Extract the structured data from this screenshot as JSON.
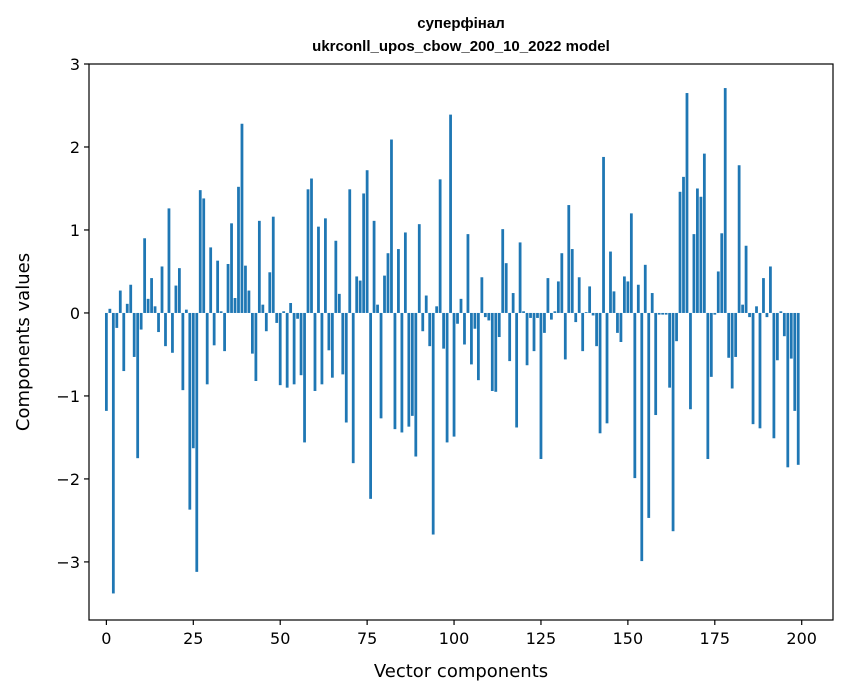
{
  "chart_data": {
    "type": "bar",
    "title_line1": "суперфінал",
    "title_line2": "ukrconll_upos_cbow_200_10_2022 model",
    "xlabel": "Vector components",
    "ylabel": "Components values",
    "xlim": [
      -5,
      209
    ],
    "ylim": [
      -3.7,
      3.0
    ],
    "xticks": [
      0,
      25,
      50,
      75,
      100,
      125,
      150,
      175,
      200
    ],
    "xtick_labels": [
      "0",
      "25",
      "50",
      "75",
      "100",
      "125",
      "150",
      "175",
      "200"
    ],
    "yticks": [
      3,
      2,
      1,
      0,
      -1,
      -2,
      -3
    ],
    "ytick_labels": [
      "3",
      "2",
      "1",
      "0",
      "−1",
      "−2",
      "−3"
    ],
    "bar_color": "#1f77b4",
    "x": [
      0,
      1,
      2,
      3,
      4,
      5,
      6,
      7,
      8,
      9,
      10,
      11,
      12,
      13,
      14,
      15,
      16,
      17,
      18,
      19,
      20,
      21,
      22,
      23,
      24,
      25,
      26,
      27,
      28,
      29,
      30,
      31,
      32,
      33,
      34,
      35,
      36,
      37,
      38,
      39,
      40,
      41,
      42,
      43,
      44,
      45,
      46,
      47,
      48,
      49,
      50,
      51,
      52,
      53,
      54,
      55,
      56,
      57,
      58,
      59,
      60,
      61,
      62,
      63,
      64,
      65,
      66,
      67,
      68,
      69,
      70,
      71,
      72,
      73,
      74,
      75,
      76,
      77,
      78,
      79,
      80,
      81,
      82,
      83,
      84,
      85,
      86,
      87,
      88,
      89,
      90,
      91,
      92,
      93,
      94,
      95,
      96,
      97,
      98,
      99,
      100,
      101,
      102,
      103,
      104,
      105,
      106,
      107,
      108,
      109,
      110,
      111,
      112,
      113,
      114,
      115,
      116,
      117,
      118,
      119,
      120,
      121,
      122,
      123,
      124,
      125,
      126,
      127,
      128,
      129,
      130,
      131,
      132,
      133,
      134,
      135,
      136,
      137,
      138,
      139,
      140,
      141,
      142,
      143,
      144,
      145,
      146,
      147,
      148,
      149,
      150,
      151,
      152,
      153,
      154,
      155,
      156,
      157,
      158,
      159,
      160,
      161,
      162,
      163,
      164,
      165,
      166,
      167,
      168,
      169,
      170,
      171,
      172,
      173,
      174,
      175,
      176,
      177,
      178,
      179,
      180,
      181,
      182,
      183,
      184,
      185,
      186,
      187,
      188,
      189,
      190,
      191,
      192,
      193,
      194,
      195,
      196,
      197,
      198,
      199
    ],
    "values": [
      -1.18,
      0.05,
      -3.38,
      -0.18,
      0.27,
      -0.7,
      0.11,
      0.34,
      -0.53,
      -1.75,
      -0.2,
      0.9,
      0.17,
      0.42,
      0.08,
      -0.23,
      0.56,
      -0.4,
      1.26,
      -0.48,
      0.33,
      0.54,
      -0.93,
      0.04,
      -2.37,
      -1.63,
      -3.12,
      1.48,
      1.38,
      -0.86,
      0.79,
      -0.39,
      0.63,
      0.02,
      -0.46,
      0.59,
      1.08,
      0.18,
      1.52,
      2.28,
      0.57,
      0.27,
      -0.49,
      -0.82,
      1.11,
      0.1,
      -0.22,
      0.49,
      1.16,
      -0.12,
      -0.87,
      0.02,
      -0.9,
      0.12,
      -0.86,
      -0.07,
      -0.75,
      -1.56,
      1.49,
      1.62,
      -0.94,
      1.04,
      -0.86,
      1.14,
      -0.45,
      -0.78,
      0.87,
      0.23,
      -0.74,
      -1.32,
      1.49,
      -1.81,
      0.44,
      0.39,
      1.44,
      1.72,
      -2.24,
      1.11,
      0.1,
      -1.27,
      0.45,
      0.72,
      2.09,
      -1.4,
      0.77,
      -1.44,
      0.97,
      -1.37,
      -1.24,
      -1.73,
      1.07,
      -0.22,
      0.21,
      -0.4,
      -2.67,
      0.08,
      1.61,
      -0.43,
      -1.56,
      2.39,
      -1.49,
      -0.13,
      0.17,
      -0.38,
      0.95,
      -0.62,
      -0.19,
      -0.81,
      0.43,
      -0.05,
      -0.09,
      -0.94,
      -0.95,
      -0.29,
      1.01,
      0.6,
      -0.58,
      0.24,
      -1.38,
      0.85,
      0.02,
      -0.63,
      -0.06,
      -0.46,
      -0.06,
      -1.76,
      -0.24,
      0.42,
      -0.08,
      0.02,
      0.38,
      0.72,
      -0.56,
      1.3,
      0.77,
      -0.11,
      0.43,
      -0.46,
      0.01,
      0.32,
      -0.03,
      -0.4,
      -1.45,
      1.88,
      -1.33,
      0.74,
      0.26,
      -0.24,
      -0.35,
      0.44,
      0.38,
      1.2,
      -1.99,
      0.34,
      -2.99,
      0.58,
      -2.47,
      0.24,
      -1.23,
      -0.02,
      -0.02,
      -0.02,
      -0.9,
      -2.63,
      -0.34,
      1.46,
      1.64,
      2.65,
      -1.16,
      0.95,
      1.5,
      1.4,
      1.92,
      -1.76,
      -0.77,
      -0.02,
      0.5,
      0.96,
      2.71,
      -0.54,
      -0.91,
      -0.53,
      1.78,
      0.1,
      0.81,
      -0.05,
      -1.34,
      0.08,
      -1.39,
      0.42,
      -0.05,
      0.56,
      -1.51,
      -0.57,
      0.02,
      -0.28,
      -1.86,
      -0.55,
      -1.18,
      -1.83
    ]
  }
}
